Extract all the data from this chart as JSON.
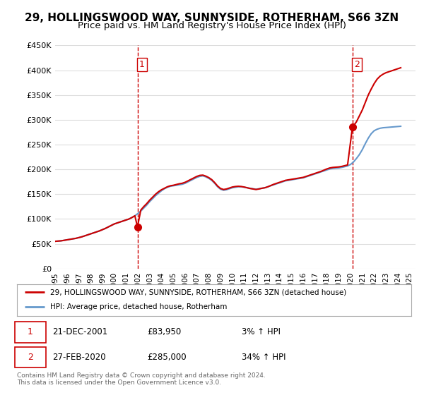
{
  "title": "29, HOLLINGSWOOD WAY, SUNNYSIDE, ROTHERHAM, S66 3ZN",
  "subtitle": "Price paid vs. HM Land Registry's House Price Index (HPI)",
  "title_fontsize": 11,
  "subtitle_fontsize": 9.5,
  "ylim": [
    0,
    450000
  ],
  "yticks": [
    0,
    50000,
    100000,
    150000,
    200000,
    250000,
    300000,
    350000,
    400000,
    450000
  ],
  "ytick_labels": [
    "£0",
    "£50K",
    "£100K",
    "£150K",
    "£200K",
    "£250K",
    "£300K",
    "£350K",
    "£400K",
    "£450K"
  ],
  "xlim_start": 1995.0,
  "xlim_end": 2025.5,
  "xticks": [
    1995,
    1996,
    1997,
    1998,
    1999,
    2000,
    2001,
    2002,
    2003,
    2004,
    2005,
    2006,
    2007,
    2008,
    2009,
    2010,
    2011,
    2012,
    2013,
    2014,
    2015,
    2016,
    2017,
    2018,
    2019,
    2020,
    2021,
    2022,
    2023,
    2024,
    2025
  ],
  "property_color": "#cc0000",
  "hpi_color": "#6699cc",
  "sale1_x": 2001.97,
  "sale1_y": 83950,
  "sale2_x": 2020.16,
  "sale2_y": 285000,
  "sale_marker_color": "#cc0000",
  "vline_color": "#cc0000",
  "legend_label_property": "29, HOLLINGSWOOD WAY, SUNNYSIDE, ROTHERHAM, S66 3ZN (detached house)",
  "legend_label_hpi": "HPI: Average price, detached house, Rotherham",
  "table_row1": [
    "1",
    "21-DEC-2001",
    "£83,950",
    "3% ↑ HPI"
  ],
  "table_row2": [
    "2",
    "27-FEB-2020",
    "£285,000",
    "34% ↑ HPI"
  ],
  "footnote": "Contains HM Land Registry data © Crown copyright and database right 2024.\nThis data is licensed under the Open Government Licence v3.0.",
  "bg_color": "#ffffff",
  "grid_color": "#dddddd",
  "hpi_data_x": [
    1995.0,
    1995.25,
    1995.5,
    1995.75,
    1996.0,
    1996.25,
    1996.5,
    1996.75,
    1997.0,
    1997.25,
    1997.5,
    1997.75,
    1998.0,
    1998.25,
    1998.5,
    1998.75,
    1999.0,
    1999.25,
    1999.5,
    1999.75,
    2000.0,
    2000.25,
    2000.5,
    2000.75,
    2001.0,
    2001.25,
    2001.5,
    2001.75,
    2002.0,
    2002.25,
    2002.5,
    2002.75,
    2003.0,
    2003.25,
    2003.5,
    2003.75,
    2004.0,
    2004.25,
    2004.5,
    2004.75,
    2005.0,
    2005.25,
    2005.5,
    2005.75,
    2006.0,
    2006.25,
    2006.5,
    2006.75,
    2007.0,
    2007.25,
    2007.5,
    2007.75,
    2008.0,
    2008.25,
    2008.5,
    2008.75,
    2009.0,
    2009.25,
    2009.5,
    2009.75,
    2010.0,
    2010.25,
    2010.5,
    2010.75,
    2011.0,
    2011.25,
    2011.5,
    2011.75,
    2012.0,
    2012.25,
    2012.5,
    2012.75,
    2013.0,
    2013.25,
    2013.5,
    2013.75,
    2014.0,
    2014.25,
    2014.5,
    2014.75,
    2015.0,
    2015.25,
    2015.5,
    2015.75,
    2016.0,
    2016.25,
    2016.5,
    2016.75,
    2017.0,
    2017.25,
    2017.5,
    2017.75,
    2018.0,
    2018.25,
    2018.5,
    2018.75,
    2019.0,
    2019.25,
    2019.5,
    2019.75,
    2020.0,
    2020.25,
    2020.5,
    2020.75,
    2021.0,
    2021.25,
    2021.5,
    2021.75,
    2022.0,
    2022.25,
    2022.5,
    2022.75,
    2023.0,
    2023.25,
    2023.5,
    2023.75,
    2024.0,
    2024.25
  ],
  "hpi_data_y": [
    55000,
    55500,
    56000,
    57000,
    58000,
    59000,
    60000,
    61000,
    62500,
    64000,
    66000,
    68000,
    70000,
    72000,
    74000,
    76000,
    78500,
    81000,
    84000,
    87000,
    90000,
    92000,
    94000,
    96000,
    98000,
    100000,
    103000,
    106500,
    111000,
    116000,
    122000,
    128000,
    135000,
    141000,
    147000,
    152000,
    157000,
    161000,
    164000,
    166000,
    167000,
    168000,
    169000,
    170000,
    172000,
    175000,
    178000,
    181000,
    184000,
    186000,
    187000,
    185000,
    182000,
    178000,
    172000,
    165000,
    160000,
    158000,
    159000,
    161000,
    163000,
    164000,
    165000,
    165000,
    164000,
    163000,
    162000,
    161000,
    160000,
    161000,
    162000,
    163000,
    165000,
    167000,
    169000,
    171000,
    173000,
    175000,
    177000,
    178000,
    179000,
    180000,
    181000,
    182000,
    183000,
    185000,
    187000,
    189000,
    191000,
    193000,
    195000,
    197000,
    199000,
    201000,
    202000,
    202500,
    203000,
    204000,
    205500,
    207000,
    210000,
    215000,
    222000,
    230000,
    240000,
    252000,
    263000,
    272000,
    278000,
    281000,
    283000,
    284000,
    284500,
    285000,
    285500,
    286000,
    286500,
    287000
  ],
  "property_data_x": [
    1995.0,
    1995.25,
    1995.5,
    1995.75,
    1996.0,
    1996.25,
    1996.5,
    1996.75,
    1997.0,
    1997.25,
    1997.5,
    1997.75,
    1998.0,
    1998.25,
    1998.5,
    1998.75,
    1999.0,
    1999.25,
    1999.5,
    1999.75,
    2000.0,
    2000.25,
    2000.5,
    2000.75,
    2001.0,
    2001.25,
    2001.5,
    2001.75,
    2001.97,
    2002.25,
    2002.5,
    2002.75,
    2003.0,
    2003.25,
    2003.5,
    2003.75,
    2004.0,
    2004.25,
    2004.5,
    2004.75,
    2005.0,
    2005.25,
    2005.5,
    2005.75,
    2006.0,
    2006.25,
    2006.5,
    2006.75,
    2007.0,
    2007.25,
    2007.5,
    2007.75,
    2008.0,
    2008.25,
    2008.5,
    2008.75,
    2009.0,
    2009.25,
    2009.5,
    2009.75,
    2010.0,
    2010.25,
    2010.5,
    2010.75,
    2011.0,
    2011.25,
    2011.5,
    2011.75,
    2012.0,
    2012.25,
    2012.5,
    2012.75,
    2013.0,
    2013.25,
    2013.5,
    2013.75,
    2014.0,
    2014.25,
    2014.5,
    2014.75,
    2015.0,
    2015.25,
    2015.5,
    2015.75,
    2016.0,
    2016.25,
    2016.5,
    2016.75,
    2017.0,
    2017.25,
    2017.5,
    2017.75,
    2018.0,
    2018.25,
    2018.5,
    2018.75,
    2019.0,
    2019.25,
    2019.5,
    2019.75,
    2020.16,
    2020.5,
    2020.75,
    2021.0,
    2021.25,
    2021.5,
    2021.75,
    2022.0,
    2022.25,
    2022.5,
    2022.75,
    2023.0,
    2023.25,
    2023.5,
    2023.75,
    2024.0,
    2024.25
  ],
  "property_data_y": [
    55000,
    55500,
    56000,
    57000,
    58000,
    59000,
    60000,
    61000,
    62500,
    64000,
    66000,
    68000,
    70000,
    72000,
    74000,
    76000,
    78500,
    81000,
    84000,
    87000,
    90000,
    92000,
    94000,
    96000,
    98000,
    100000,
    103000,
    106500,
    83950,
    118000,
    125000,
    131000,
    138000,
    144000,
    150000,
    155000,
    159000,
    162000,
    165000,
    167000,
    168000,
    169500,
    171000,
    172000,
    174000,
    177000,
    180000,
    183000,
    186000,
    188000,
    188500,
    186500,
    183500,
    179500,
    173500,
    166500,
    161500,
    159500,
    160500,
    162500,
    164500,
    165500,
    166000,
    165500,
    164500,
    163000,
    161500,
    160500,
    159500,
    160500,
    162000,
    163000,
    165000,
    167500,
    170000,
    172000,
    174000,
    176000,
    178000,
    179000,
    180000,
    181000,
    182000,
    183000,
    184000,
    186000,
    188000,
    190000,
    192000,
    194000,
    196000,
    198500,
    201000,
    203000,
    204000,
    204500,
    205000,
    206000,
    207500,
    209000,
    285000,
    296000,
    308000,
    320000,
    335000,
    350000,
    362000,
    373000,
    382000,
    388000,
    392000,
    395000,
    397000,
    399000,
    401000,
    403000,
    405000,
    407000
  ]
}
